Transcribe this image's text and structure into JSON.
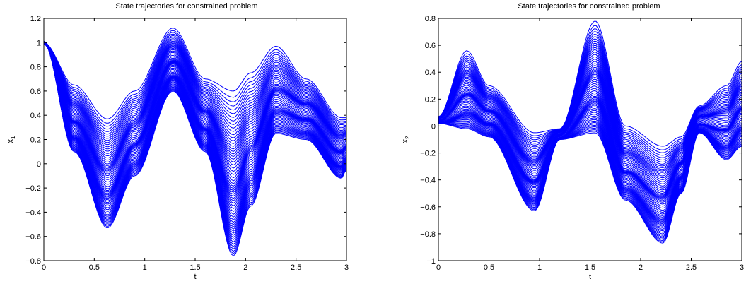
{
  "colors": {
    "series": "#0000ff",
    "axes": "#000000",
    "background": "#ffffff"
  },
  "chart_data": [
    {
      "type": "line",
      "title": "State trajectories for constrained problem",
      "xlabel": "t",
      "ylabel": "x",
      "ylabel_sub": "1",
      "xlim": [
        0,
        3
      ],
      "ylim": [
        -0.8,
        1.2
      ],
      "xticks": [
        0,
        0.5,
        1,
        1.5,
        2,
        2.5,
        3
      ],
      "xtick_labels": [
        "0",
        "0.5",
        "1",
        "1.5",
        "2",
        "2.5",
        "3"
      ],
      "yticks": [
        -0.8,
        -0.6,
        -0.4,
        -0.2,
        0,
        0.2,
        0.4,
        0.6,
        0.8,
        1,
        1.2
      ],
      "ytick_labels": [
        "−0.8",
        "−0.6",
        "−0.4",
        "−0.2",
        "0",
        "0.2",
        "0.4",
        "0.6",
        "0.8",
        "1",
        "1.2"
      ],
      "grid": false,
      "num_trajectories": 60,
      "envelope": {
        "x": [
          0,
          0.3,
          0.63,
          0.9,
          1.28,
          1.6,
          1.88,
          2.05,
          2.3,
          2.6,
          2.95,
          3.0
        ],
        "y_upper": [
          1.0,
          0.65,
          0.37,
          0.6,
          1.12,
          0.7,
          0.6,
          0.75,
          0.97,
          0.7,
          0.38,
          0.38
        ],
        "y_lower": [
          1.0,
          0.1,
          -0.53,
          -0.1,
          0.6,
          0.1,
          -0.76,
          -0.35,
          0.25,
          0.2,
          -0.12,
          -0.05
        ]
      }
    },
    {
      "type": "line",
      "title": "State trajectories for constrained problem",
      "xlabel": "t",
      "ylabel": "x",
      "ylabel_sub": "2",
      "xlim": [
        0,
        3
      ],
      "ylim": [
        -1,
        0.8
      ],
      "xticks": [
        0,
        0.5,
        1,
        1.5,
        2,
        2.5,
        3
      ],
      "xtick_labels": [
        "0",
        "0.5",
        "1",
        "1.5",
        "2",
        "2.5",
        "3"
      ],
      "yticks": [
        -1,
        -0.8,
        -0.6,
        -0.4,
        -0.2,
        0,
        0.2,
        0.4,
        0.6,
        0.8
      ],
      "ytick_labels": [
        "−1",
        "−0.8",
        "−0.6",
        "−0.4",
        "−0.2",
        "0",
        "0.2",
        "0.4",
        "0.6",
        "0.8"
      ],
      "grid": false,
      "num_trajectories": 60,
      "envelope": {
        "x": [
          0,
          0.28,
          0.5,
          0.95,
          1.2,
          1.55,
          1.85,
          2.22,
          2.4,
          2.58,
          2.85,
          3.0
        ],
        "y_upper": [
          0.07,
          0.56,
          0.3,
          -0.05,
          -0.02,
          0.78,
          0.0,
          -0.15,
          -0.08,
          0.15,
          0.3,
          0.48
        ],
        "y_lower": [
          0.02,
          -0.02,
          -0.08,
          -0.63,
          -0.1,
          -0.05,
          -0.55,
          -0.87,
          -0.5,
          -0.05,
          -0.25,
          -0.15
        ]
      }
    }
  ]
}
